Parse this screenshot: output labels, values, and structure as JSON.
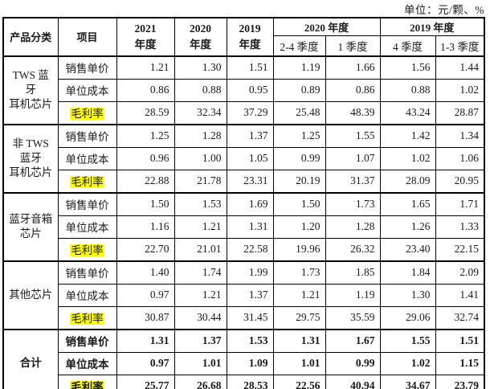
{
  "unit_label": "单位：元/颗、%",
  "colors": {
    "highlight": "#ffff00",
    "border": "#000000",
    "text": "#1a1a1a"
  },
  "table": {
    "header": {
      "product": "产品分类",
      "item": "项目",
      "y2021": "2021\n年度",
      "y2020": "2020\n年度",
      "y2019": "2019\n年度",
      "y2020_group": "2020 年度",
      "q2_4_2020": "2-4 季度",
      "q1_2020": "1 季度",
      "y2019_group": "2019 年度",
      "q4_2019": "4 季度",
      "q1_3_2019": "1-3 季度"
    },
    "groups": [
      {
        "category": "TWS 蓝牙\n耳机芯片",
        "bold": false,
        "rows": [
          {
            "label": "销售单价",
            "highlight": false,
            "values": [
              "1.21",
              "1.30",
              "1.51",
              "1.19",
              "1.66",
              "1.56",
              "1.44"
            ]
          },
          {
            "label": "单位成本",
            "highlight": false,
            "values": [
              "0.86",
              "0.88",
              "0.95",
              "0.89",
              "0.86",
              "0.88",
              "1.02"
            ]
          },
          {
            "label": "毛利率",
            "highlight": true,
            "values": [
              "28.59",
              "32.34",
              "37.29",
              "25.48",
              "48.39",
              "43.24",
              "28.87"
            ]
          }
        ]
      },
      {
        "category": "非 TWS\n蓝牙\n耳机芯片",
        "bold": false,
        "rows": [
          {
            "label": "销售单价",
            "highlight": false,
            "values": [
              "1.25",
              "1.28",
              "1.37",
              "1.25",
              "1.55",
              "1.42",
              "1.34"
            ]
          },
          {
            "label": "单位成本",
            "highlight": false,
            "values": [
              "0.96",
              "1.00",
              "1.05",
              "0.99",
              "1.07",
              "1.02",
              "1.06"
            ]
          },
          {
            "label": "毛利率",
            "highlight": true,
            "values": [
              "22.88",
              "21.78",
              "23.31",
              "20.19",
              "31.37",
              "28.09",
              "20.95"
            ]
          }
        ]
      },
      {
        "category": "蓝牙音箱\n芯片",
        "bold": false,
        "rows": [
          {
            "label": "销售单价",
            "highlight": false,
            "values": [
              "1.50",
              "1.53",
              "1.69",
              "1.50",
              "1.73",
              "1.65",
              "1.71"
            ]
          },
          {
            "label": "单位成本",
            "highlight": false,
            "values": [
              "1.16",
              "1.21",
              "1.31",
              "1.20",
              "1.28",
              "1.26",
              "1.33"
            ]
          },
          {
            "label": "毛利率",
            "highlight": true,
            "values": [
              "22.70",
              "21.01",
              "22.58",
              "19.96",
              "26.32",
              "23.40",
              "22.15"
            ]
          }
        ]
      },
      {
        "category": "其他芯片",
        "bold": false,
        "rows": [
          {
            "label": "销售单价",
            "highlight": false,
            "values": [
              "1.40",
              "1.74",
              "1.99",
              "1.73",
              "1.85",
              "1.84",
              "2.09"
            ]
          },
          {
            "label": "单位成本",
            "highlight": false,
            "values": [
              "0.97",
              "1.21",
              "1.37",
              "1.21",
              "1.19",
              "1.30",
              "1.41"
            ]
          },
          {
            "label": "毛利率",
            "highlight": true,
            "values": [
              "30.87",
              "30.44",
              "31.45",
              "29.75",
              "35.59",
              "29.06",
              "32.74"
            ]
          }
        ]
      },
      {
        "category": "合计",
        "bold": true,
        "rows": [
          {
            "label": "销售单价",
            "highlight": false,
            "values": [
              "1.31",
              "1.37",
              "1.53",
              "1.31",
              "1.67",
              "1.55",
              "1.51"
            ]
          },
          {
            "label": "单位成本",
            "highlight": false,
            "values": [
              "0.97",
              "1.01",
              "1.09",
              "1.01",
              "0.99",
              "1.02",
              "1.15"
            ]
          },
          {
            "label": "毛利率",
            "highlight": true,
            "values": [
              "25.77",
              "26.68",
              "28.53",
              "22.56",
              "40.94",
              "34.67",
              "23.79"
            ]
          }
        ]
      }
    ]
  }
}
